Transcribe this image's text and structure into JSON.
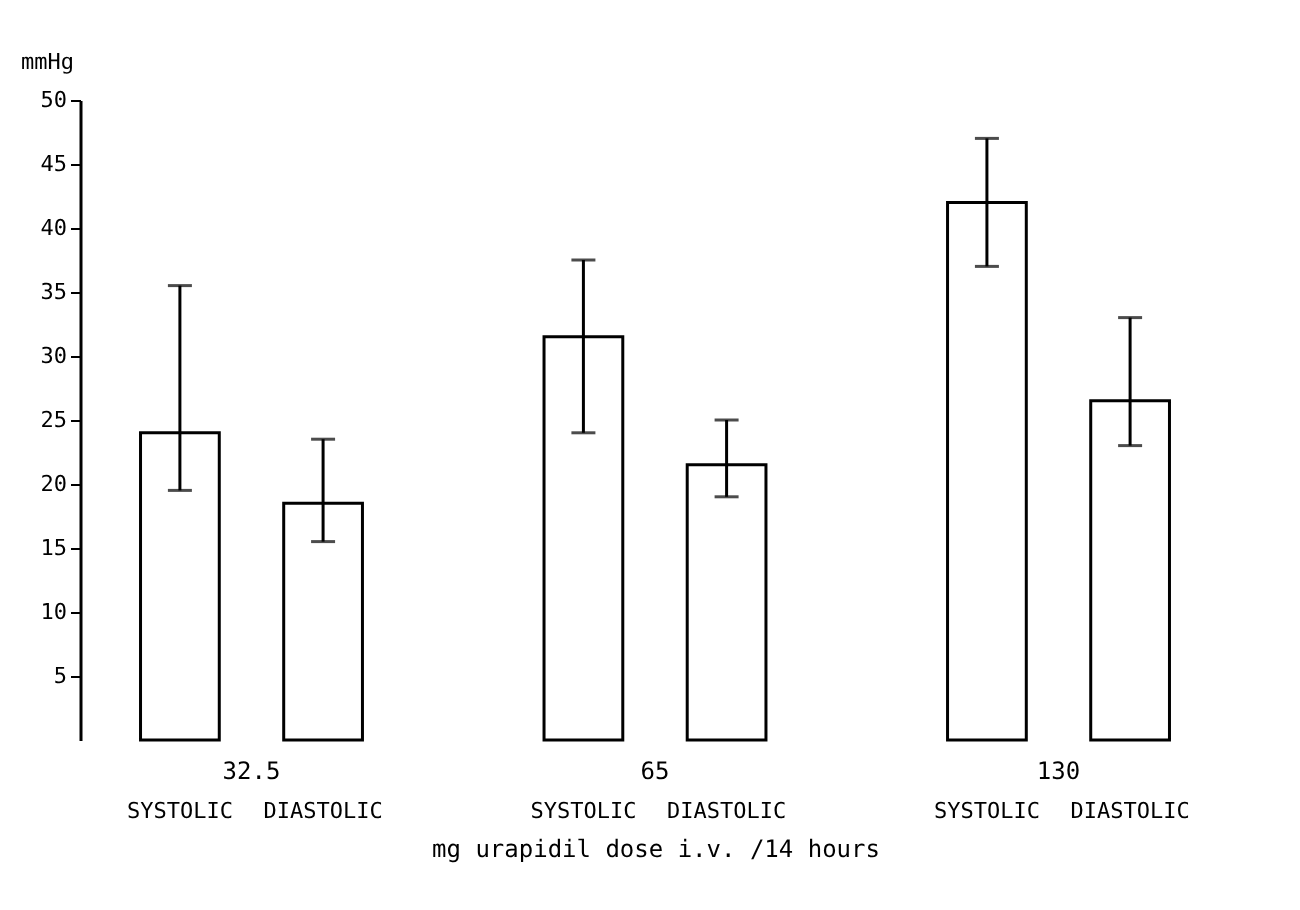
{
  "chart_data": {
    "type": "bar",
    "xlabel": "mg urapidil dose i.v. /14 hours",
    "ylabel": "mmHg",
    "categories": [
      "32.5",
      "65",
      "130"
    ],
    "series": [
      {
        "name": "SYSTOLIC",
        "color": "#ffffff",
        "values": [
          24,
          31.5,
          42
        ],
        "errors": [
          [
            19.5,
            35.5
          ],
          [
            24,
            37.5
          ],
          [
            37,
            47
          ]
        ]
      },
      {
        "name": "DIASTOLIC",
        "color": "#ffffff",
        "values": [
          18.5,
          21.5,
          26.5
        ],
        "errors": [
          [
            15.5,
            23.5
          ],
          [
            19,
            25
          ],
          [
            23,
            33
          ]
        ]
      }
    ],
    "ylim": [
      0,
      50
    ],
    "yticks": [
      5,
      10,
      15,
      20,
      25,
      30,
      35,
      40,
      45,
      50
    ],
    "grid": false,
    "legend": false
  }
}
